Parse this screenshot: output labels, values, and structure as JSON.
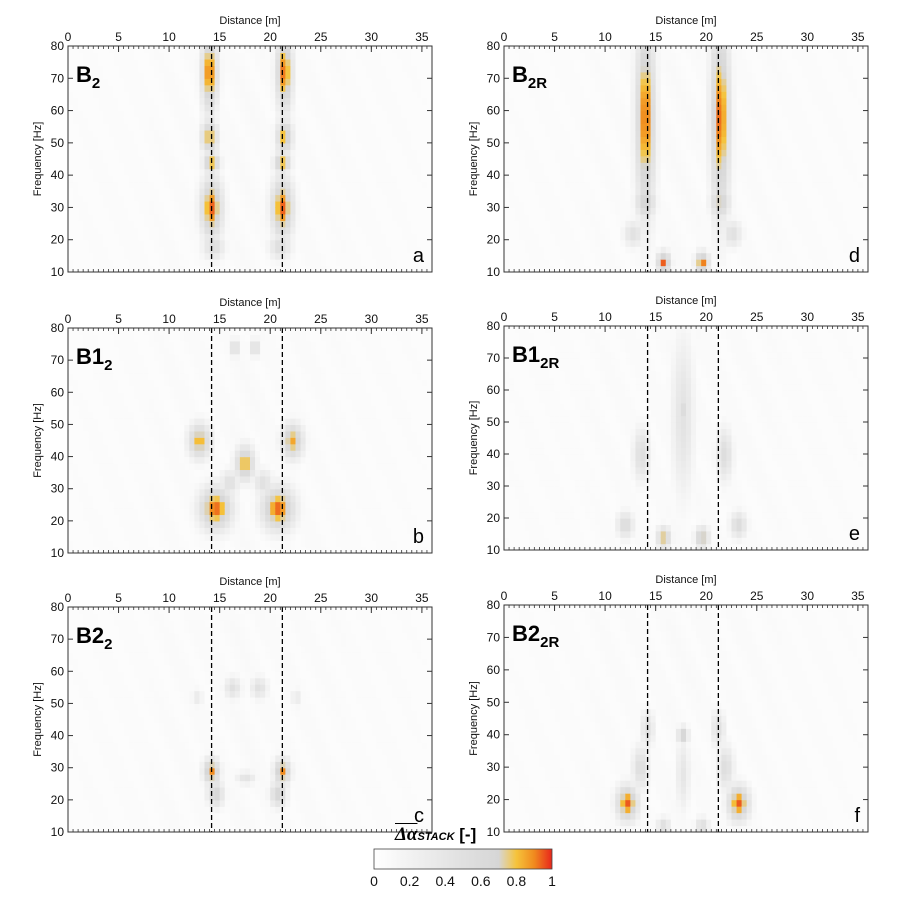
{
  "figure": {
    "colorbar": {
      "title_symbol": "Δα",
      "title_subscript": "STACK",
      "title_unit": "[-]",
      "ticks": [
        "0",
        "0.2",
        "0.4",
        "0.6",
        "0.8",
        "1"
      ],
      "range": [
        0,
        1
      ],
      "colors": [
        "#ffffff",
        "#efefef",
        "#e0e0e0",
        "#d6d6d6",
        "#f5c33b",
        "#f08a1e",
        "#e8261c"
      ]
    }
  },
  "chart_data": [
    {
      "type": "heatmap",
      "panel_letter": "a",
      "title_main": "B",
      "title_sub": "2",
      "xlabel": "Distance [m]",
      "ylabel": "Frequency [Hz]",
      "xlim": [
        0,
        36
      ],
      "ylim": [
        10,
        80
      ],
      "xticks": [
        "0",
        "5",
        "10",
        "15",
        "20",
        "25",
        "30",
        "35"
      ],
      "yticks": [
        "10",
        "20",
        "30",
        "40",
        "50",
        "60",
        "70",
        "80"
      ],
      "boundary_lines_x": [
        14.2,
        21.2
      ],
      "hotspots": [
        {
          "x": 14.2,
          "y": 30,
          "sx": 0.8,
          "sy": 7,
          "v": 0.95
        },
        {
          "x": 21.2,
          "y": 30,
          "sx": 0.8,
          "sy": 7,
          "v": 0.95
        },
        {
          "x": 14.2,
          "y": 44,
          "sx": 0.6,
          "sy": 2.5,
          "v": 0.85
        },
        {
          "x": 21.2,
          "y": 44,
          "sx": 0.6,
          "sy": 2.5,
          "v": 0.85
        },
        {
          "x": 14.0,
          "y": 52,
          "sx": 0.6,
          "sy": 4,
          "v": 0.85
        },
        {
          "x": 21.4,
          "y": 52,
          "sx": 0.6,
          "sy": 4,
          "v": 0.85
        },
        {
          "x": 14.0,
          "y": 72,
          "sx": 0.6,
          "sy": 9,
          "v": 0.95
        },
        {
          "x": 21.4,
          "y": 72,
          "sx": 0.6,
          "sy": 9,
          "v": 0.95
        },
        {
          "x": 14.4,
          "y": 18,
          "sx": 0.8,
          "sy": 3,
          "v": 0.55
        },
        {
          "x": 21.0,
          "y": 18,
          "sx": 0.8,
          "sy": 3,
          "v": 0.55
        }
      ]
    },
    {
      "type": "heatmap",
      "panel_letter": "b",
      "title_main": "B1",
      "title_sub": "2",
      "xlabel": "Distance [m]",
      "ylabel": "Frequency [Hz]",
      "xlim": [
        0,
        36
      ],
      "ylim": [
        10,
        80
      ],
      "xticks": [
        "0",
        "5",
        "10",
        "15",
        "20",
        "25",
        "30",
        "35"
      ],
      "yticks": [
        "10",
        "20",
        "30",
        "40",
        "50",
        "60",
        "70",
        "80"
      ],
      "boundary_lines_x": [
        14.2,
        21.2
      ],
      "hotspots": [
        {
          "x": 14.6,
          "y": 24,
          "sx": 1.2,
          "sy": 5,
          "v": 0.95
        },
        {
          "x": 20.8,
          "y": 24,
          "sx": 1.2,
          "sy": 5,
          "v": 0.95
        },
        {
          "x": 13.0,
          "y": 45,
          "sx": 0.8,
          "sy": 4,
          "v": 0.85
        },
        {
          "x": 22.2,
          "y": 45,
          "sx": 0.8,
          "sy": 4,
          "v": 0.85
        },
        {
          "x": 17.5,
          "y": 38,
          "sx": 0.7,
          "sy": 4,
          "v": 0.85
        },
        {
          "x": 16.5,
          "y": 74,
          "sx": 0.4,
          "sy": 2,
          "v": 0.55
        },
        {
          "x": 18.5,
          "y": 74,
          "sx": 0.4,
          "sy": 2,
          "v": 0.55
        },
        {
          "x": 16.0,
          "y": 32,
          "sx": 0.7,
          "sy": 3,
          "v": 0.5
        },
        {
          "x": 19.3,
          "y": 32,
          "sx": 0.7,
          "sy": 3,
          "v": 0.5
        }
      ]
    },
    {
      "type": "heatmap",
      "panel_letter": "c",
      "title_main": "B2",
      "title_sub": "2",
      "xlabel": "Distance [m]",
      "ylabel": "Frequency [Hz]",
      "xlim": [
        0,
        36
      ],
      "ylim": [
        10,
        80
      ],
      "xticks": [
        "0",
        "5",
        "10",
        "15",
        "20",
        "25",
        "30",
        "35"
      ],
      "yticks": [
        "10",
        "20",
        "30",
        "40",
        "50",
        "60",
        "70",
        "80"
      ],
      "boundary_lines_x": [
        14.2,
        21.2
      ],
      "hotspots": [
        {
          "x": 14.2,
          "y": 29,
          "sx": 0.6,
          "sy": 3,
          "v": 0.9
        },
        {
          "x": 21.2,
          "y": 29,
          "sx": 0.6,
          "sy": 3,
          "v": 0.9
        },
        {
          "x": 14.6,
          "y": 22,
          "sx": 0.6,
          "sy": 3,
          "v": 0.7
        },
        {
          "x": 20.8,
          "y": 22,
          "sx": 0.6,
          "sy": 3,
          "v": 0.7
        },
        {
          "x": 17.6,
          "y": 27,
          "sx": 0.7,
          "sy": 1.5,
          "v": 0.45
        },
        {
          "x": 16.3,
          "y": 55,
          "sx": 0.6,
          "sy": 2.5,
          "v": 0.5
        },
        {
          "x": 18.9,
          "y": 55,
          "sx": 0.6,
          "sy": 2.5,
          "v": 0.5
        },
        {
          "x": 12.8,
          "y": 52,
          "sx": 0.4,
          "sy": 2,
          "v": 0.35
        },
        {
          "x": 22.6,
          "y": 52,
          "sx": 0.4,
          "sy": 2,
          "v": 0.35
        }
      ]
    },
    {
      "type": "heatmap",
      "panel_letter": "d",
      "title_main": "B",
      "title_sub": "2R",
      "xlabel": "Distance [m]",
      "ylabel": "Frequency [Hz]",
      "xlim": [
        0,
        36
      ],
      "ylim": [
        10,
        80
      ],
      "xticks": [
        "0",
        "5",
        "10",
        "15",
        "20",
        "25",
        "30",
        "35"
      ],
      "yticks": [
        "10",
        "20",
        "30",
        "40",
        "50",
        "60",
        "70",
        "80"
      ],
      "boundary_lines_x": [
        14.2,
        21.2
      ],
      "hotspots": [
        {
          "x": 14.0,
          "y": 58,
          "sx": 0.7,
          "sy": 22,
          "v": 0.95
        },
        {
          "x": 21.4,
          "y": 58,
          "sx": 0.7,
          "sy": 22,
          "v": 0.95
        },
        {
          "x": 14.0,
          "y": 32,
          "sx": 0.7,
          "sy": 4,
          "v": 0.75
        },
        {
          "x": 21.4,
          "y": 32,
          "sx": 0.7,
          "sy": 4,
          "v": 0.75
        },
        {
          "x": 12.8,
          "y": 22,
          "sx": 0.7,
          "sy": 3,
          "v": 0.5
        },
        {
          "x": 22.6,
          "y": 22,
          "sx": 0.7,
          "sy": 3,
          "v": 0.5
        },
        {
          "x": 15.8,
          "y": 13,
          "sx": 0.5,
          "sy": 2.5,
          "v": 0.95
        },
        {
          "x": 19.6,
          "y": 13,
          "sx": 0.5,
          "sy": 2.5,
          "v": 0.95
        }
      ]
    },
    {
      "type": "heatmap",
      "panel_letter": "e",
      "title_main": "B1",
      "title_sub": "2R",
      "xlabel": "Distance [m]",
      "ylabel": "Frequency [Hz]",
      "xlim": [
        0,
        36
      ],
      "ylim": [
        10,
        80
      ],
      "xticks": [
        "0",
        "5",
        "10",
        "15",
        "20",
        "25",
        "30",
        "35"
      ],
      "yticks": [
        "10",
        "20",
        "30",
        "40",
        "50",
        "60",
        "70",
        "80"
      ],
      "boundary_lines_x": [
        14.2,
        21.2
      ],
      "hotspots": [
        {
          "x": 17.7,
          "y": 52,
          "sx": 0.8,
          "sy": 18,
          "v": 0.45
        },
        {
          "x": 17.7,
          "y": 54,
          "sx": 0.4,
          "sy": 3,
          "v": 0.6
        },
        {
          "x": 13.6,
          "y": 40,
          "sx": 0.6,
          "sy": 6,
          "v": 0.55
        },
        {
          "x": 21.8,
          "y": 40,
          "sx": 0.6,
          "sy": 6,
          "v": 0.55
        },
        {
          "x": 12.0,
          "y": 18,
          "sx": 0.6,
          "sy": 3,
          "v": 0.6
        },
        {
          "x": 23.2,
          "y": 18,
          "sx": 0.6,
          "sy": 3,
          "v": 0.6
        },
        {
          "x": 15.8,
          "y": 14,
          "sx": 0.5,
          "sy": 2.5,
          "v": 0.8
        },
        {
          "x": 19.6,
          "y": 14,
          "sx": 0.5,
          "sy": 2.5,
          "v": 0.8
        }
      ]
    },
    {
      "type": "heatmap",
      "panel_letter": "f",
      "title_main": "B2",
      "title_sub": "2R",
      "xlabel": "Distance [m]",
      "ylabel": "Frequency [Hz]",
      "xlim": [
        0,
        36
      ],
      "ylim": [
        10,
        80
      ],
      "xticks": [
        "0",
        "5",
        "10",
        "15",
        "20",
        "25",
        "30",
        "35"
      ],
      "yticks": [
        "10",
        "20",
        "30",
        "40",
        "50",
        "60",
        "70",
        "80"
      ],
      "boundary_lines_x": [
        14.2,
        21.2
      ],
      "hotspots": [
        {
          "x": 12.2,
          "y": 19,
          "sx": 0.8,
          "sy": 4,
          "v": 0.95
        },
        {
          "x": 23.2,
          "y": 19,
          "sx": 0.8,
          "sy": 4,
          "v": 0.95
        },
        {
          "x": 13.5,
          "y": 30,
          "sx": 0.6,
          "sy": 5,
          "v": 0.55
        },
        {
          "x": 21.9,
          "y": 30,
          "sx": 0.6,
          "sy": 5,
          "v": 0.55
        },
        {
          "x": 14.2,
          "y": 42,
          "sx": 0.5,
          "sy": 4,
          "v": 0.5
        },
        {
          "x": 21.2,
          "y": 42,
          "sx": 0.5,
          "sy": 4,
          "v": 0.5
        },
        {
          "x": 17.7,
          "y": 40,
          "sx": 0.4,
          "sy": 2,
          "v": 0.75
        },
        {
          "x": 17.7,
          "y": 28,
          "sx": 0.5,
          "sy": 8,
          "v": 0.4
        },
        {
          "x": 15.8,
          "y": 12,
          "sx": 0.5,
          "sy": 2,
          "v": 0.55
        },
        {
          "x": 19.6,
          "y": 12,
          "sx": 0.5,
          "sy": 2,
          "v": 0.55
        }
      ]
    }
  ]
}
